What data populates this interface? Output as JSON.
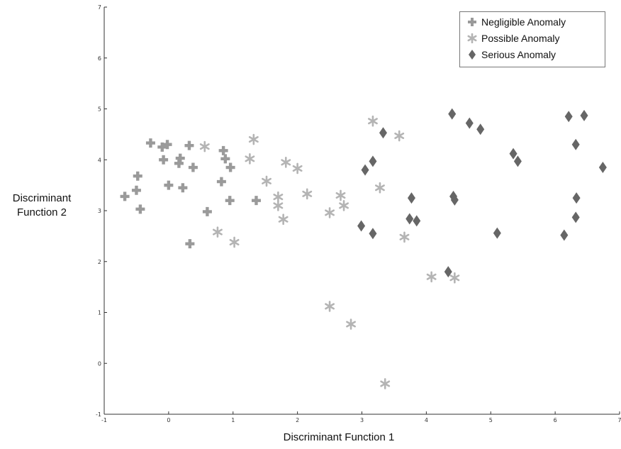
{
  "chart_data": {
    "type": "scatter",
    "title": "",
    "xlabel": "Discriminant Function 1",
    "ylabel": "Discriminant Function 2",
    "xlim": [
      -1,
      7
    ],
    "ylim": [
      -1,
      7
    ],
    "xticks": [
      "-1",
      "0",
      "1",
      "2",
      "3",
      "4",
      "5",
      "6",
      "7"
    ],
    "yticks": [
      "-1",
      "0",
      "1",
      "2",
      "3",
      "4",
      "5",
      "6",
      "7"
    ],
    "grid": false,
    "legend_position": "top-right",
    "series": [
      {
        "name": "Negligible Anomaly",
        "marker": "plus",
        "color": "#9a9a9a",
        "points": [
          [
            -0.68,
            3.28
          ],
          [
            -0.5,
            3.4
          ],
          [
            -0.48,
            3.68
          ],
          [
            -0.44,
            3.03
          ],
          [
            -0.28,
            4.33
          ],
          [
            -0.1,
            4.25
          ],
          [
            -0.08,
            4.0
          ],
          [
            -0.02,
            4.3
          ],
          [
            0.0,
            3.5
          ],
          [
            0.16,
            3.93
          ],
          [
            0.18,
            4.03
          ],
          [
            0.22,
            3.45
          ],
          [
            0.32,
            4.28
          ],
          [
            0.38,
            3.85
          ],
          [
            0.6,
            2.98
          ],
          [
            0.33,
            2.35
          ],
          [
            0.82,
            3.57
          ],
          [
            0.88,
            4.02
          ],
          [
            0.85,
            4.18
          ],
          [
            0.96,
            3.85
          ],
          [
            0.95,
            3.2
          ],
          [
            1.36,
            3.2
          ]
        ]
      },
      {
        "name": "Possible Anomaly",
        "marker": "asterisk",
        "color": "#b4b4b4",
        "points": [
          [
            0.56,
            4.26
          ],
          [
            0.76,
            2.58
          ],
          [
            1.02,
            2.38
          ],
          [
            1.26,
            4.02
          ],
          [
            1.32,
            4.4
          ],
          [
            1.52,
            3.58
          ],
          [
            1.7,
            3.27
          ],
          [
            1.7,
            3.1
          ],
          [
            1.78,
            2.83
          ],
          [
            1.82,
            3.95
          ],
          [
            2.0,
            3.83
          ],
          [
            2.15,
            3.33
          ],
          [
            2.5,
            2.96
          ],
          [
            2.67,
            3.3
          ],
          [
            2.72,
            3.1
          ],
          [
            2.5,
            1.12
          ],
          [
            2.83,
            0.77
          ],
          [
            3.17,
            4.76
          ],
          [
            3.28,
            3.45
          ],
          [
            3.58,
            4.47
          ],
          [
            3.66,
            2.48
          ],
          [
            4.08,
            1.7
          ],
          [
            4.44,
            1.68
          ],
          [
            3.36,
            -0.4
          ]
        ]
      },
      {
        "name": "Serious Anomaly",
        "marker": "diamond",
        "color": "#666666",
        "points": [
          [
            2.99,
            2.7
          ],
          [
            3.05,
            3.8
          ],
          [
            3.17,
            3.97
          ],
          [
            3.17,
            2.55
          ],
          [
            3.33,
            4.53
          ],
          [
            3.74,
            2.84
          ],
          [
            3.77,
            3.25
          ],
          [
            3.85,
            2.8
          ],
          [
            4.34,
            1.8
          ],
          [
            4.4,
            4.9
          ],
          [
            4.42,
            3.28
          ],
          [
            4.44,
            3.21
          ],
          [
            4.67,
            4.72
          ],
          [
            4.84,
            4.6
          ],
          [
            5.1,
            2.56
          ],
          [
            5.35,
            4.12
          ],
          [
            5.42,
            3.97
          ],
          [
            6.14,
            2.52
          ],
          [
            6.21,
            4.85
          ],
          [
            6.32,
            4.3
          ],
          [
            6.33,
            3.25
          ],
          [
            6.32,
            2.87
          ],
          [
            6.45,
            4.87
          ],
          [
            6.74,
            3.85
          ]
        ]
      }
    ]
  }
}
